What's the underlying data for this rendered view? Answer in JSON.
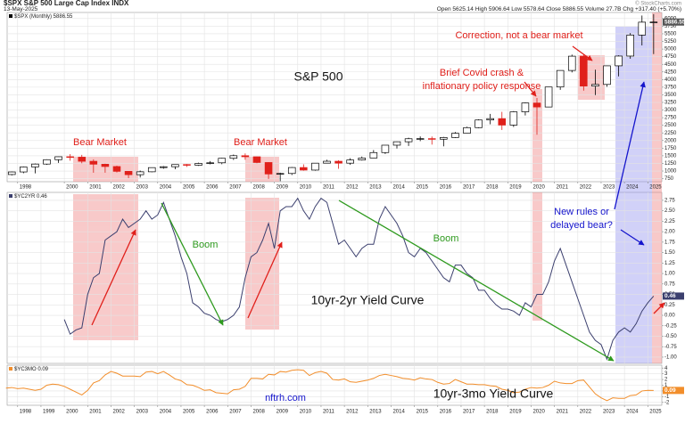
{
  "header": {
    "symbol": "$SPX S&P 500 Large Cap Index INDX",
    "date": "13-May-2025",
    "stats": "Open 5625.14 High 5906.64 Low 5578.64 Close 5886.55 Volume 27.7B Chg +317.40 (+5.70%)",
    "credit": "© StockCharts.com"
  },
  "chart_data": [
    {
      "type": "candlestick",
      "name": "$SPX (Monthly) 5886.55",
      "up_color": "#000000",
      "down_color": "#e0201b",
      "x": [
        1997.75,
        1998.25,
        1998.75,
        1999.25,
        1999.75,
        2000.25,
        2000.75,
        2001.25,
        2001.75,
        2002.25,
        2002.75,
        2003.25,
        2003.75,
        2004.25,
        2004.75,
        2005.25,
        2005.75,
        2006.25,
        2006.75,
        2007.25,
        2007.75,
        2008.25,
        2008.75,
        2009.25,
        2009.75,
        2010.25,
        2010.75,
        2011.25,
        2011.75,
        2012.25,
        2012.75,
        2013.25,
        2013.75,
        2014.25,
        2014.75,
        2015.25,
        2015.75,
        2016.25,
        2016.75,
        2017.25,
        2017.75,
        2018.25,
        2018.75,
        2019.25,
        2019.75,
        2020.25,
        2020.75,
        2021.25,
        2021.75,
        2022.25,
        2022.75,
        2023.25,
        2023.75,
        2024.25,
        2024.75,
        2025.25
      ],
      "open": [
        885,
        970,
        1133,
        1229,
        1372,
        1469,
        1455,
        1320,
        1224,
        1148,
        990,
        880,
        975,
        1112,
        1141,
        1212,
        1191,
        1248,
        1270,
        1418,
        1503,
        1468,
        1280,
        903,
        919,
        1115,
        1031,
        1258,
        1321,
        1258,
        1362,
        1426,
        1606,
        1848,
        1960,
        2059,
        2063,
        2044,
        2099,
        2239,
        2423,
        2674,
        2718,
        2507,
        2942,
        3231,
        3100,
        3756,
        4298,
        4766,
        3785,
        3840,
        4450,
        4770,
        5460,
        5882
      ],
      "high": [
        983,
        1150,
        1245,
        1383,
        1473,
        1553,
        1530,
        1383,
        1240,
        1176,
        994,
        1015,
        1112,
        1163,
        1217,
        1230,
        1275,
        1326,
        1431,
        1540,
        1576,
        1471,
        1292,
        946,
        1130,
        1220,
        1262,
        1370,
        1356,
        1422,
        1475,
        1687,
        1849,
        1968,
        2093,
        2135,
        2132,
        2120,
        2277,
        2454,
        2694,
        2873,
        2941,
        2964,
        3247,
        3394,
        3760,
        4302,
        4818,
        4819,
        4325,
        4458,
        4793,
        5524,
        6100,
        6147
      ],
      "low": [
        855,
        927,
        923,
        1205,
        1268,
        1339,
        1254,
        945,
        945,
        952,
        768,
        788,
        960,
        1076,
        1060,
        1137,
        1168,
        1219,
        1224,
        1363,
        1370,
        1256,
        741,
        667,
        869,
        1011,
        1011,
        1249,
        1075,
        1202,
        1343,
        1426,
        1560,
        1737,
        1821,
        1981,
        1867,
        1810,
        2084,
        2230,
        2405,
        2533,
        2347,
        2444,
        2822,
        2192,
        3090,
        3662,
        4234,
        3636,
        3492,
        3764,
        4104,
        4683,
        5119,
        4835
      ],
      "close": [
        970,
        1133,
        1229,
        1372,
        1469,
        1455,
        1320,
        1224,
        1148,
        990,
        880,
        975,
        1112,
        1141,
        1212,
        1191,
        1248,
        1270,
        1418,
        1503,
        1468,
        1280,
        903,
        919,
        1115,
        1031,
        1258,
        1321,
        1258,
        1362,
        1426,
        1606,
        1848,
        1960,
        2059,
        2063,
        2044,
        2099,
        2239,
        2423,
        2674,
        2718,
        2507,
        2942,
        3231,
        3100,
        3756,
        4298,
        4766,
        3785,
        3840,
        4450,
        4770,
        5460,
        5882,
        5886.55
      ],
      "last_label": 5886.55,
      "label_color": "#555555",
      "xlim": [
        1997.55,
        2025.6
      ],
      "xticks": [
        1998,
        2000,
        2001,
        2002,
        2003,
        2004,
        2005,
        2006,
        2007,
        2008,
        2009,
        2010,
        2011,
        2012,
        2013,
        2014,
        2015,
        2016,
        2017,
        2018,
        2019,
        2020,
        2021,
        2022,
        2023,
        2024,
        2025
      ],
      "x_labels": true,
      "ylim": [
        650,
        6200
      ],
      "yticks": [
        6000,
        5750,
        5500,
        5250,
        5000,
        4750,
        4500,
        4250,
        4000,
        3750,
        3500,
        3250,
        3000,
        2750,
        2500,
        2250,
        2000,
        1750,
        1500,
        1250,
        1000,
        750
      ],
      "grid": true,
      "annotations": [
        "Bear Market",
        "Bear Market",
        "S&P 500",
        "Brief Covid crash &",
        "inflationary policy response",
        "Correction, not a bear market"
      ]
    },
    {
      "type": "line",
      "x": [
        2000,
        2000.25,
        2000.5,
        2000.75,
        2001,
        2001.25,
        2001.5,
        2001.75,
        2002,
        2002.25,
        2002.5,
        2002.75,
        2003,
        2003.25,
        2003.5,
        2003.75,
        2004,
        2004.25,
        2004.5,
        2004.75,
        2005,
        2005.25,
        2005.5,
        2005.75,
        2006,
        2006.25,
        2006.5,
        2006.75,
        2007,
        2007.25,
        2007.5,
        2007.75,
        2008,
        2008.25,
        2008.5,
        2008.75,
        2009,
        2009.25,
        2009.5,
        2009.75,
        2010,
        2010.25,
        2010.5,
        2010.75,
        2011,
        2011.25,
        2011.5,
        2011.75,
        2012,
        2012.25,
        2012.5,
        2012.75,
        2013,
        2013.25,
        2013.5,
        2013.75,
        2014,
        2014.25,
        2014.5,
        2014.75,
        2015,
        2015.25,
        2015.5,
        2015.75,
        2016,
        2016.25,
        2016.5,
        2016.75,
        2017,
        2017.25,
        2017.5,
        2017.75,
        2018,
        2018.25,
        2018.5,
        2018.75,
        2019,
        2019.25,
        2019.5,
        2019.75,
        2020,
        2020.25,
        2020.5,
        2020.75,
        2021,
        2021.25,
        2021.5,
        2021.75,
        2022,
        2022.25,
        2022.5,
        2022.75,
        2023,
        2023.25,
        2023.5,
        2023.75,
        2024,
        2024.25,
        2024.5,
        2024.75,
        2025,
        2025.25
      ],
      "series": [
        {
          "name": "$YC2YR 0.46",
          "color": "#3b3f6e",
          "values": [
            -0.1,
            -0.45,
            -0.35,
            -0.3,
            0.5,
            0.9,
            1.0,
            1.8,
            1.9,
            2.0,
            2.3,
            2.1,
            2.2,
            2.3,
            2.5,
            2.3,
            2.4,
            2.7,
            2.3,
            1.9,
            1.4,
            1.0,
            0.3,
            0.2,
            0.05,
            0.0,
            -0.1,
            -0.15,
            -0.1,
            0.0,
            0.2,
            0.9,
            1.4,
            1.5,
            1.8,
            2.2,
            1.6,
            2.5,
            2.6,
            2.6,
            2.8,
            2.5,
            2.3,
            2.6,
            2.8,
            2.7,
            2.2,
            1.7,
            1.8,
            1.6,
            1.4,
            1.6,
            1.7,
            1.7,
            2.3,
            2.6,
            2.4,
            2.2,
            1.9,
            1.5,
            1.4,
            1.6,
            1.5,
            1.3,
            1.1,
            0.9,
            0.8,
            1.2,
            1.2,
            1.0,
            0.9,
            0.6,
            0.6,
            0.4,
            0.25,
            0.15,
            0.15,
            0.1,
            0.0,
            0.3,
            0.2,
            0.5,
            0.5,
            0.8,
            1.3,
            1.6,
            1.2,
            0.8,
            0.4,
            0.0,
            -0.4,
            -0.6,
            -0.7,
            -1.05,
            -0.6,
            -0.4,
            -0.3,
            -0.4,
            -0.2,
            0.1,
            0.3,
            0.46
          ]
        }
      ],
      "last_label": 0.46,
      "label_color": "#3b3f6e",
      "xlim": [
        1997.55,
        2025.6
      ],
      "xticks": [
        1998,
        1999,
        2000,
        2001,
        2002,
        2003,
        2004,
        2005,
        2006,
        2007,
        2008,
        2009,
        2010,
        2011,
        2012,
        2013,
        2014,
        2015,
        2016,
        2017,
        2018,
        2019,
        2020,
        2021,
        2022,
        2023,
        2024,
        2025
      ],
      "x_labels": false,
      "ylim": [
        -1.15,
        2.94
      ],
      "yticks": [
        2.75,
        {
          "value": 2.5,
          "label": "2.50"
        },
        2.25,
        {
          "value": 2,
          "label": "2.00"
        },
        1.75,
        {
          "value": 1.5,
          "label": "1.50"
        },
        1.25,
        {
          "value": 1,
          "label": "1.00"
        },
        0.75,
        {
          "value": 0.5,
          "label": "0.50"
        },
        0.25,
        {
          "value": 0,
          "label": "0.00"
        },
        -0.25,
        {
          "value": -0.5,
          "label": "-0.50"
        },
        -0.75,
        {
          "value": -1,
          "label": "-1.00"
        }
      ],
      "grid": true,
      "annotations": [
        "Boom",
        "Boom",
        "10yr-2yr Yield Curve",
        "New rules or",
        "delayed bear?"
      ]
    },
    {
      "type": "line",
      "x": [
        1997.5,
        1997.75,
        1998,
        1998.25,
        1998.5,
        1998.75,
        1999,
        1999.25,
        1999.5,
        1999.75,
        2000,
        2000.25,
        2000.5,
        2000.75,
        2001,
        2001.25,
        2001.5,
        2001.75,
        2002,
        2002.25,
        2002.5,
        2002.75,
        2003,
        2003.25,
        2003.5,
        2003.75,
        2004,
        2004.25,
        2004.5,
        2004.75,
        2005,
        2005.25,
        2005.5,
        2005.75,
        2006,
        2006.25,
        2006.5,
        2006.75,
        2007,
        2007.25,
        2007.5,
        2007.75,
        2008,
        2008.25,
        2008.5,
        2008.75,
        2009,
        2009.25,
        2009.5,
        2009.75,
        2010,
        2010.25,
        2010.5,
        2010.75,
        2011,
        2011.25,
        2011.5,
        2011.75,
        2012,
        2012.25,
        2012.5,
        2012.75,
        2013,
        2013.25,
        2013.5,
        2013.75,
        2014,
        2014.25,
        2014.5,
        2014.75,
        2015,
        2015.25,
        2015.5,
        2015.75,
        2016,
        2016.25,
        2016.5,
        2016.75,
        2017,
        2017.25,
        2017.5,
        2017.75,
        2018,
        2018.25,
        2018.5,
        2018.75,
        2019,
        2019.25,
        2019.5,
        2019.75,
        2020,
        2020.25,
        2020.5,
        2020.75,
        2021,
        2021.25,
        2021.5,
        2021.75,
        2022,
        2022.25,
        2022.5,
        2022.75,
        2023,
        2023.25,
        2023.5,
        2023.75,
        2024,
        2024.25,
        2024.5,
        2024.75,
        2025,
        2025.25
      ],
      "series": [
        {
          "name": "$YC3MO 0.09",
          "color": "#f28e2b",
          "values": [
            0.5,
            0.6,
            0.4,
            0.5,
            0.3,
            0.1,
            0.3,
            1.0,
            1.2,
            1.1,
            0.8,
            0.3,
            -0.2,
            -0.7,
            0.1,
            1.4,
            1.8,
            2.8,
            3.4,
            3.1,
            2.6,
            2.6,
            2.6,
            2.5,
            3.3,
            3.4,
            3.0,
            3.4,
            2.8,
            2.1,
            1.8,
            1.1,
            1.0,
            0.6,
            0.1,
            0.2,
            -0.3,
            -0.4,
            -0.5,
            0.2,
            0.3,
            0.8,
            2.2,
            2.2,
            2.1,
            2.9,
            2.8,
            3.4,
            3.3,
            3.6,
            3.7,
            3.6,
            2.7,
            3.2,
            3.4,
            3.1,
            2.0,
            1.9,
            2.1,
            1.6,
            1.5,
            1.7,
            1.9,
            2.2,
            2.7,
            2.9,
            2.7,
            2.5,
            2.2,
            2.1,
            1.9,
            2.3,
            2.1,
            2.0,
            1.5,
            1.2,
            1.3,
            2.0,
            1.6,
            1.2,
            1.2,
            1.1,
            1.1,
            0.9,
            0.8,
            0.3,
            0.1,
            -0.3,
            -0.2,
            0.3,
            0.6,
            0.5,
            0.6,
            1.0,
            1.7,
            1.4,
            1.3,
            1.3,
            1.8,
            1.9,
            0.7,
            -0.5,
            -1.2,
            -1.7,
            -1.2,
            -1.3,
            -1.3,
            -0.8,
            -0.7,
            0.0,
            0.1,
            0.09
          ]
        }
      ],
      "last_label": 0.09,
      "label_color": "#f28e2b",
      "xlim": [
        1997.55,
        2025.6
      ],
      "xticks": [
        1998,
        1999,
        2000,
        2001,
        2002,
        2003,
        2004,
        2005,
        2006,
        2007,
        2008,
        2009,
        2010,
        2011,
        2012,
        2013,
        2014,
        2015,
        2016,
        2017,
        2018,
        2019,
        2020,
        2021,
        2022,
        2023,
        2024,
        2025
      ],
      "x_labels": true,
      "ylim": [
        -2.5,
        4.5
      ],
      "yticks": [
        4,
        3,
        2,
        1,
        0,
        -1,
        -2
      ],
      "grid": true,
      "annotations": [
        "nftrh.com",
        "10yr-3mo Yield Curve"
      ]
    }
  ]
}
